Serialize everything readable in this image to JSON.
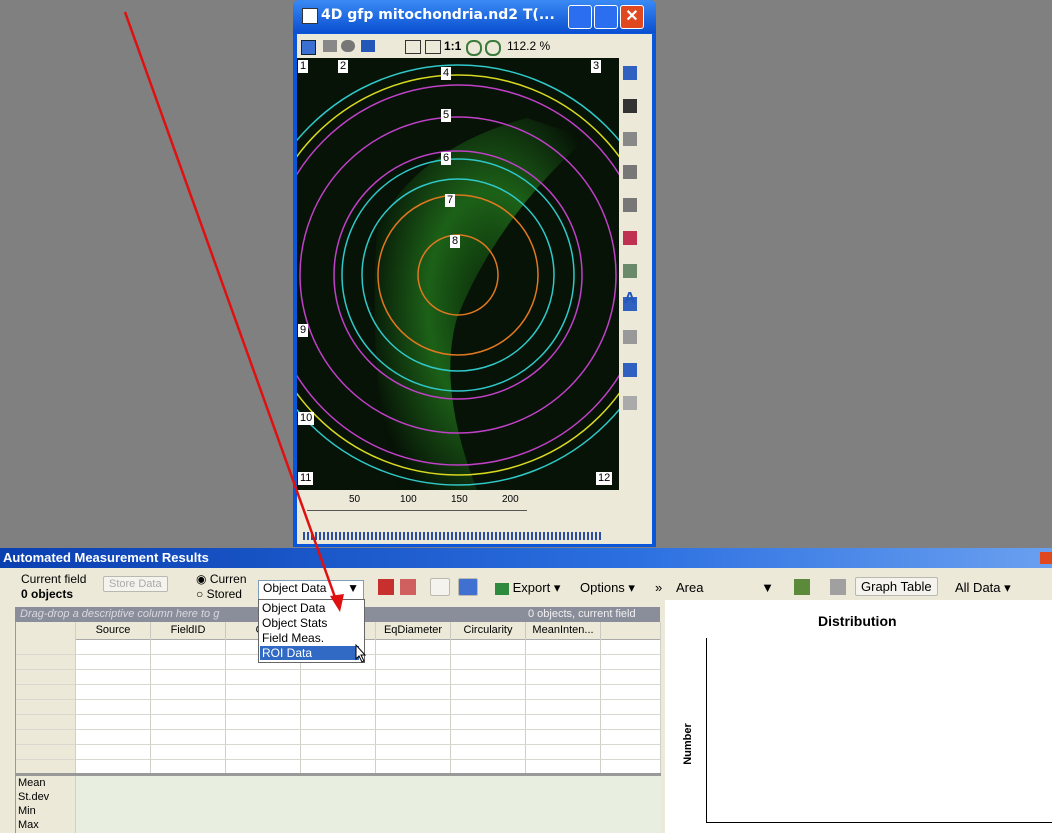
{
  "image_window": {
    "title": "4D gfp mitochondria.nd2   T(...",
    "toolbar_ratio": "1:1",
    "zoom": "112.2 %",
    "text_tool": "A",
    "roi_labels": [
      "1",
      "2",
      "3",
      "4",
      "5",
      "6",
      "7",
      "8",
      "9",
      "10",
      "11",
      "12"
    ],
    "slider_ticks": [
      "50",
      "100",
      "150",
      "200"
    ]
  },
  "results_panel": {
    "title": "Automated Measurement Results",
    "current_field": "Current field",
    "object_count": "0 objects",
    "store_button": "Store Data",
    "radio_current": "Curren",
    "radio_stored": "Stored",
    "data_dropdown": "Object Data",
    "export": "Export",
    "options": "Options",
    "more": "»",
    "measure_dropdown": "Area",
    "graph_table": "Graph Table",
    "all_data": "All Data",
    "group_hint": "Drag-drop a descriptive column here to g",
    "status": "0 objects, current field",
    "columns": [
      "Source",
      "FieldID",
      "Ob",
      "EqDiameter",
      "Circularity",
      "MeanInten..."
    ],
    "summary_rows": [
      "Mean",
      "St.dev",
      "Min",
      "Max"
    ]
  },
  "dropdown_menu": [
    "Object Data",
    "Object Stats",
    "Field Meas.",
    "ROI Data"
  ],
  "chart": {
    "title": "Distribution",
    "y_label": "Number"
  }
}
